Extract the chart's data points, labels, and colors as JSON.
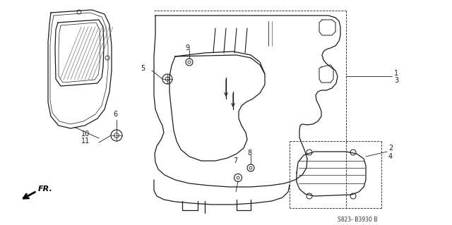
{
  "bg_color": "#ffffff",
  "line_color": "#1a1a1a",
  "fig_width": 6.4,
  "fig_height": 3.19,
  "dpi": 100,
  "part_label_s823": "S823- B3930 B"
}
